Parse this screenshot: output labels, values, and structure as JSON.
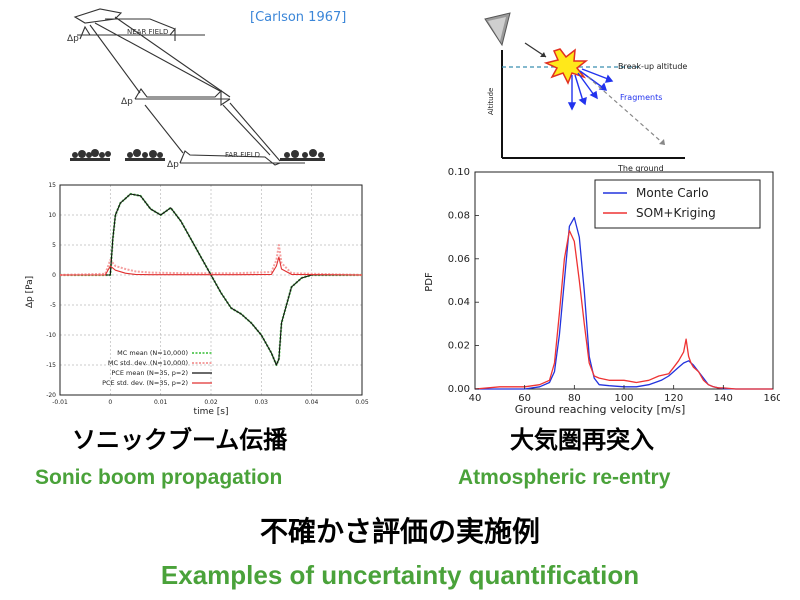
{
  "citation": "[Carlson 1967]",
  "sketch_labels": {
    "near_field": "NEAR FIELD",
    "far_field": "FAR FIELD",
    "dp": "Δp"
  },
  "reentry_diagram": {
    "breakup_label": "Break-up altitude",
    "fragments_label": "Fragments",
    "y_axis_label": "Altitude",
    "x_axis_label": "The ground"
  },
  "sonic_chart": {
    "ylabel": "Δp [Pa]",
    "xlabel": "time [s]",
    "x_ticks": [
      "-0.01",
      "0",
      "0.01",
      "0.02",
      "0.03",
      "0.04",
      "0.05"
    ],
    "y_ticks": [
      "15",
      "10",
      "5",
      "0",
      "-5",
      "-10",
      "-15",
      "-20"
    ],
    "legend": [
      {
        "label": "MC mean (N=10,000)",
        "color": "#66cc66",
        "style": "dotted"
      },
      {
        "label": "MC std. dev. (N=10,000)",
        "color": "#f4a0a0",
        "style": "dotted"
      },
      {
        "label": "PCE mean (N=35, p=2)",
        "color": "#111111",
        "style": "solid"
      },
      {
        "label": "PCE std. dev. (N=35, p=2)",
        "color": "#e03030",
        "style": "solid"
      }
    ]
  },
  "pdf_chart": {
    "ylabel": "PDF",
    "xlabel": "Ground reaching velocity [m/s]",
    "x_ticks": [
      "40",
      "60",
      "80",
      "100",
      "120",
      "140",
      "160"
    ],
    "y_ticks": [
      "0.10",
      "0.08",
      "0.06",
      "0.04",
      "0.02",
      "0.00"
    ],
    "legend": [
      {
        "label": "Monte Carlo",
        "color": "#2233dd"
      },
      {
        "label": "SOM+Kriging",
        "color": "#ee3333"
      }
    ]
  },
  "chart_data": [
    {
      "type": "line",
      "xlabel": "time [s]",
      "ylabel": "Δp [Pa]",
      "xlim": [
        -0.01,
        0.05
      ],
      "ylim": [
        -20,
        15
      ],
      "series": [
        {
          "name": "MC mean (N=10,000)",
          "x": [
            -0.01,
            0,
            0.0005,
            0.001,
            0.002,
            0.004,
            0.006,
            0.008,
            0.01,
            0.012,
            0.014,
            0.016,
            0.018,
            0.02,
            0.022,
            0.024,
            0.026,
            0.028,
            0.03,
            0.032,
            0.033,
            0.0335,
            0.034,
            0.036,
            0.038,
            0.04,
            0.045,
            0.05
          ],
          "y": [
            0,
            0,
            6,
            10,
            12,
            13.5,
            13.2,
            11,
            10,
            11.2,
            9,
            6,
            3,
            0,
            -3,
            -5.5,
            -6.5,
            -8,
            -10,
            -13,
            -15,
            -14,
            -8,
            -2,
            -0.5,
            0,
            0,
            0
          ]
        },
        {
          "name": "MC std. dev. (N=10,000)",
          "x": [
            -0.01,
            -0.001,
            0,
            0.001,
            0.003,
            0.005,
            0.008,
            0.015,
            0.025,
            0.032,
            0.033,
            0.0335,
            0.034,
            0.036,
            0.05
          ],
          "y": [
            0,
            0.2,
            2.5,
            1.5,
            1,
            0.6,
            0.4,
            0.3,
            0.3,
            0.5,
            2.5,
            5,
            2,
            0.3,
            0
          ]
        },
        {
          "name": "PCE mean (N=35, p=2)",
          "x": [
            -0.01,
            0,
            0.0005,
            0.001,
            0.002,
            0.004,
            0.006,
            0.008,
            0.01,
            0.012,
            0.014,
            0.016,
            0.018,
            0.02,
            0.022,
            0.024,
            0.026,
            0.028,
            0.03,
            0.032,
            0.033,
            0.0335,
            0.034,
            0.036,
            0.038,
            0.04,
            0.045,
            0.05
          ],
          "y": [
            0,
            0,
            6,
            10,
            12,
            13.5,
            13.2,
            11,
            10,
            11.2,
            9,
            6,
            3,
            0,
            -3,
            -5.5,
            -6.5,
            -8,
            -10,
            -13,
            -15,
            -14,
            -8,
            -2,
            -0.5,
            0,
            0,
            0
          ]
        },
        {
          "name": "PCE std. dev. (N=35, p=2)",
          "x": [
            -0.01,
            -0.001,
            0,
            0.001,
            0.003,
            0.005,
            0.008,
            0.015,
            0.025,
            0.032,
            0.033,
            0.0335,
            0.034,
            0.036,
            0.05
          ],
          "y": [
            0,
            0,
            1.5,
            0.8,
            0.3,
            0.1,
            0.05,
            0.05,
            0.05,
            0.1,
            1.5,
            3,
            1,
            0.1,
            0
          ]
        }
      ]
    },
    {
      "type": "line",
      "xlabel": "Ground reaching velocity [m/s]",
      "ylabel": "PDF",
      "xlim": [
        40,
        160
      ],
      "ylim": [
        0,
        0.1
      ],
      "series": [
        {
          "name": "Monte Carlo",
          "x": [
            40,
            50,
            60,
            66,
            70,
            72,
            74,
            76,
            78,
            80,
            82,
            84,
            86,
            88,
            90,
            94,
            100,
            105,
            110,
            115,
            118,
            120,
            122,
            124,
            126,
            128,
            130,
            132,
            134,
            136,
            138,
            140,
            145,
            150,
            160
          ],
          "y": [
            0,
            0,
            0,
            0.001,
            0.003,
            0.008,
            0.025,
            0.05,
            0.075,
            0.079,
            0.07,
            0.045,
            0.015,
            0.005,
            0.002,
            0.0015,
            0.001,
            0.001,
            0.002,
            0.004,
            0.006,
            0.008,
            0.01,
            0.012,
            0.013,
            0.011,
            0.008,
            0.005,
            0.002,
            0.001,
            0.0005,
            0.0002,
            0,
            0,
            0
          ]
        },
        {
          "name": "SOM+Kriging",
          "x": [
            40,
            50,
            60,
            66,
            70,
            72,
            74,
            76,
            78,
            80,
            82,
            84,
            86,
            88,
            90,
            94,
            100,
            105,
            110,
            114,
            118,
            120,
            122,
            124,
            125,
            126,
            127,
            128,
            130,
            132,
            134,
            136,
            138,
            140,
            145,
            150,
            160
          ],
          "y": [
            0,
            0.001,
            0.001,
            0.002,
            0.004,
            0.012,
            0.035,
            0.06,
            0.073,
            0.068,
            0.05,
            0.03,
            0.012,
            0.006,
            0.005,
            0.004,
            0.004,
            0.003,
            0.004,
            0.006,
            0.007,
            0.01,
            0.013,
            0.017,
            0.023,
            0.015,
            0.012,
            0.01,
            0.008,
            0.004,
            0.002,
            0.001,
            0.0005,
            0.0005,
            0,
            0,
            0
          ]
        }
      ]
    }
  ],
  "labels": {
    "sonic_jp": "ソニックブーム伝播",
    "reentry_jp": "大気圏再突入",
    "sonic_en": "Sonic boom propagation",
    "reentry_en": "Atmospheric re-entry",
    "examples_jp": "不確かさ評価の実施例",
    "examples_en": "Examples of uncertainty quantification"
  }
}
